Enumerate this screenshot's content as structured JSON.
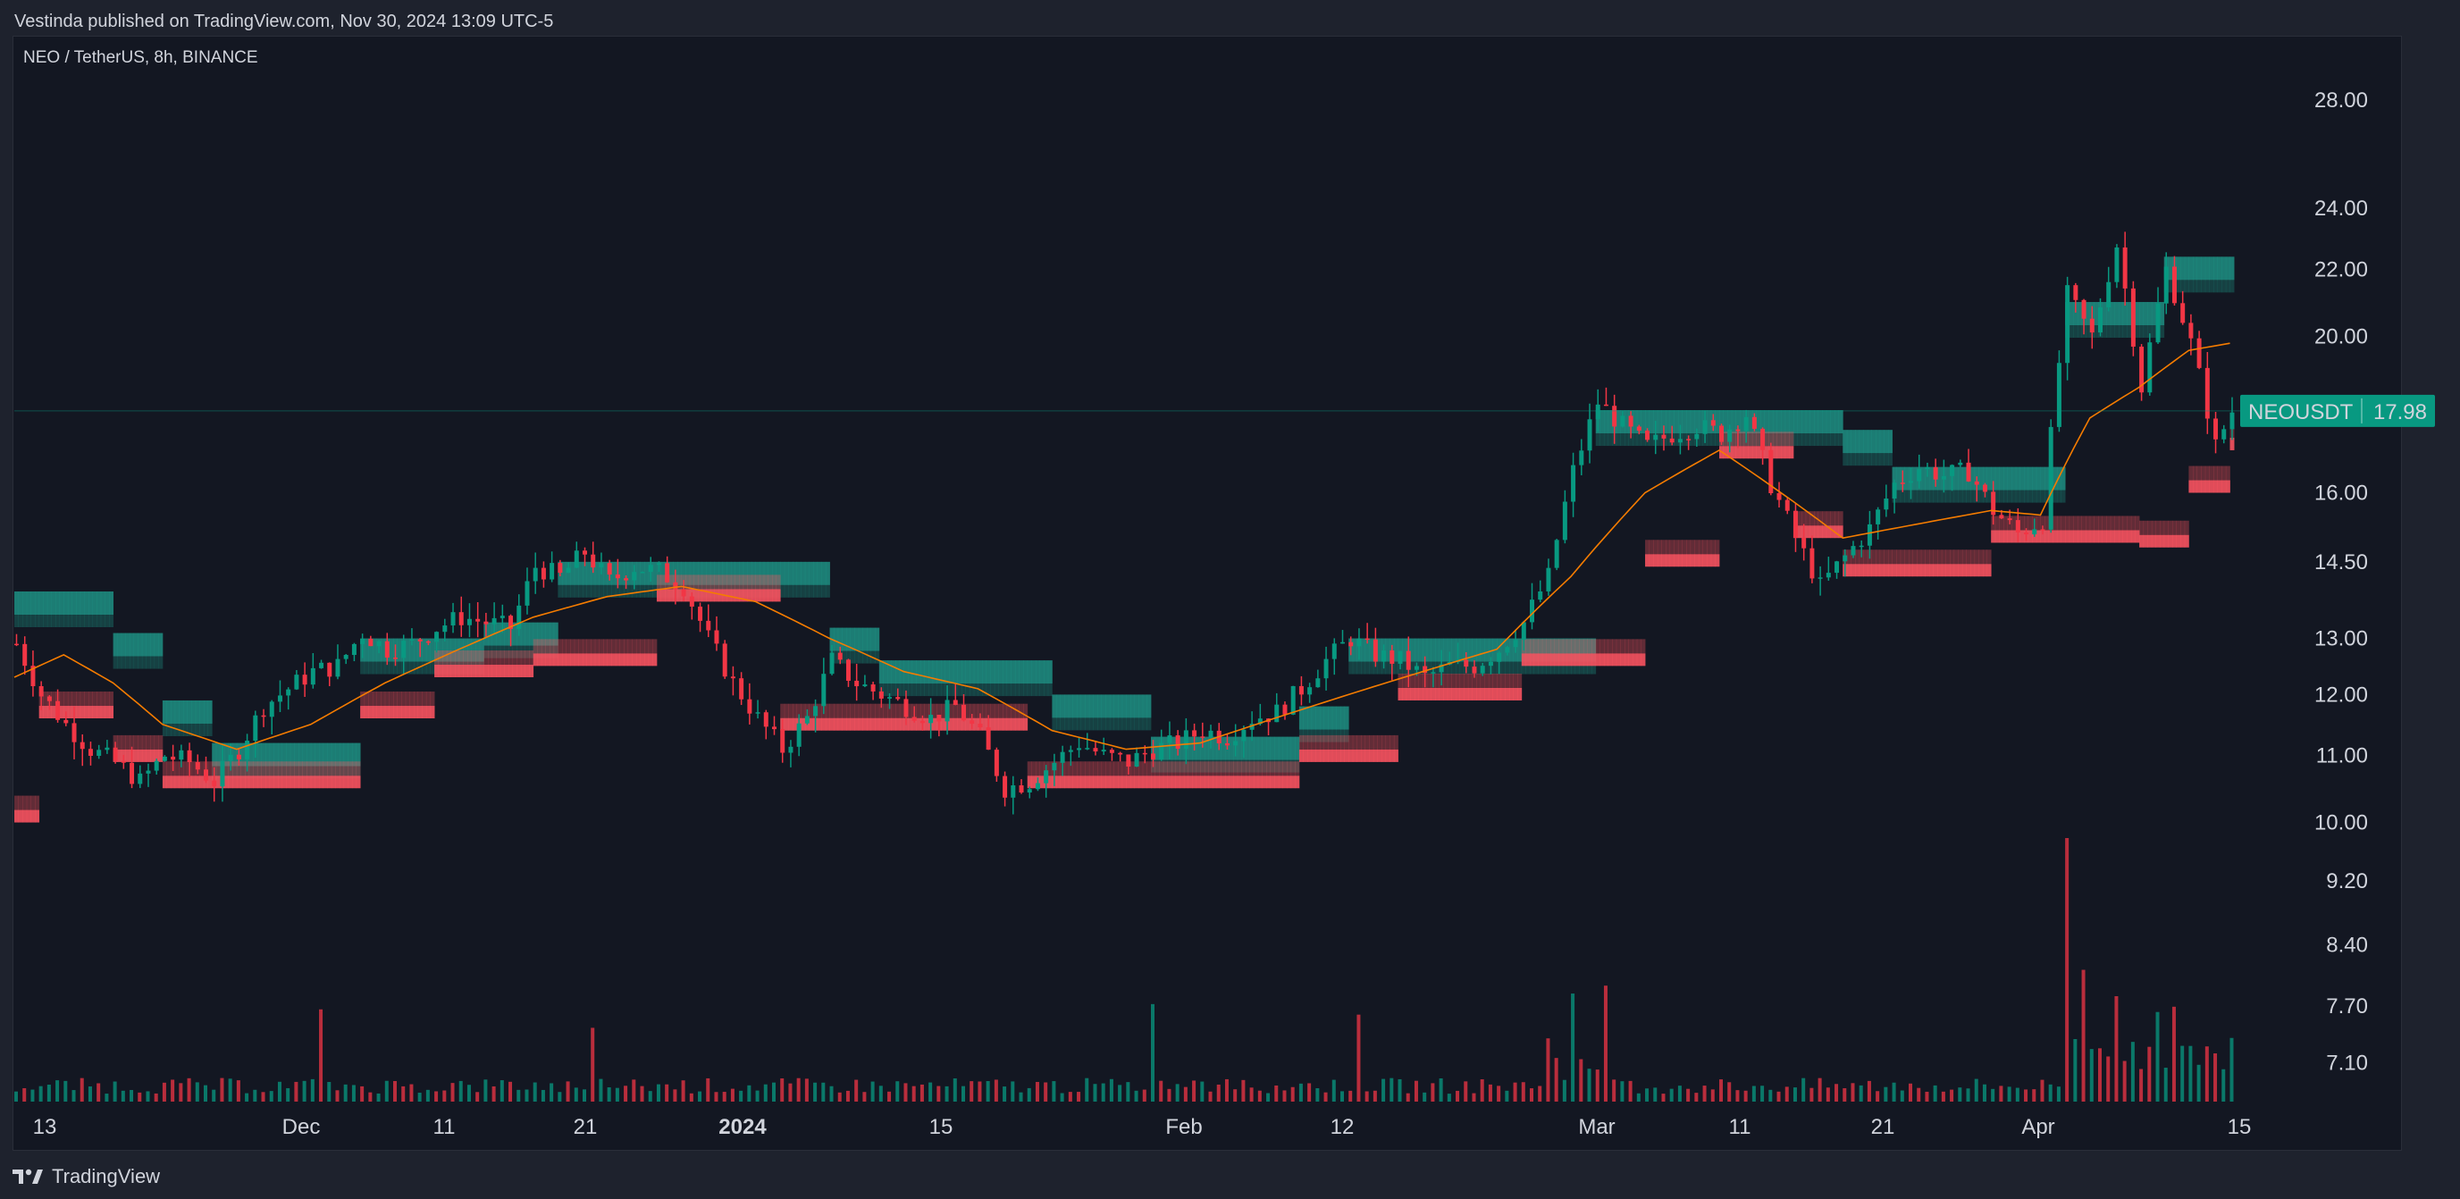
{
  "header": {
    "published_by": "Vestinda published on TradingView.com, Nov 30, 2024 13:09 UTC-5"
  },
  "symbol": {
    "title": "NEO / TetherUS, 8h, BINANCE",
    "ticker": "NEOUSDT",
    "last_price": "17.98",
    "badge_color": "#089981"
  },
  "footer": {
    "brand": "TradingView"
  },
  "colors": {
    "background": "#131722",
    "up": "#089981",
    "down": "#f23645",
    "band_upper": "#1e8f82",
    "band_lower": "#f7525f",
    "ma": "#f57c00"
  },
  "chart_data": {
    "type": "candlestick",
    "title": "NEO / TetherUS, 8h, BINANCE",
    "y_scale": "log",
    "ylim": [
      6.7,
      30.5
    ],
    "y_ticks": [
      "28.00",
      "24.00",
      "22.00",
      "20.00",
      "16.00",
      "14.50",
      "13.00",
      "12.00",
      "11.00",
      "10.00",
      "9.20",
      "8.40",
      "7.70",
      "7.10"
    ],
    "x_ticks": [
      "13",
      "Dec",
      "11",
      "21",
      "2024",
      "15",
      "Feb",
      "12",
      "Mar",
      "11",
      "21",
      "Apr",
      "15"
    ],
    "x_tick_bold": "2024",
    "last_price": 17.98,
    "price_series": [
      {
        "x": 0,
        "y": 12.9
      },
      {
        "x": 3,
        "y": 12.0
      },
      {
        "x": 6,
        "y": 11.5
      },
      {
        "x": 9,
        "y": 11.1
      },
      {
        "x": 12,
        "y": 10.9
      },
      {
        "x": 15,
        "y": 10.6
      },
      {
        "x": 18,
        "y": 11.0
      },
      {
        "x": 21,
        "y": 10.9
      },
      {
        "x": 24,
        "y": 10.6
      },
      {
        "x": 27,
        "y": 11.1
      },
      {
        "x": 30,
        "y": 11.8
      },
      {
        "x": 33,
        "y": 12.1
      },
      {
        "x": 36,
        "y": 12.4
      },
      {
        "x": 39,
        "y": 12.5
      },
      {
        "x": 42,
        "y": 13.1
      },
      {
        "x": 45,
        "y": 12.8
      },
      {
        "x": 48,
        "y": 12.9
      },
      {
        "x": 51,
        "y": 13.2
      },
      {
        "x": 54,
        "y": 13.4
      },
      {
        "x": 57,
        "y": 13.3
      },
      {
        "x": 60,
        "y": 13.2
      },
      {
        "x": 63,
        "y": 14.4
      },
      {
        "x": 66,
        "y": 14.2
      },
      {
        "x": 69,
        "y": 14.7
      },
      {
        "x": 72,
        "y": 14.1
      },
      {
        "x": 75,
        "y": 14.4
      },
      {
        "x": 78,
        "y": 14.3
      },
      {
        "x": 81,
        "y": 14.0
      },
      {
        "x": 84,
        "y": 13.0
      },
      {
        "x": 87,
        "y": 12.2
      },
      {
        "x": 90,
        "y": 11.6
      },
      {
        "x": 93,
        "y": 11.1
      },
      {
        "x": 96,
        "y": 11.6
      },
      {
        "x": 99,
        "y": 12.6
      },
      {
        "x": 102,
        "y": 12.2
      },
      {
        "x": 105,
        "y": 12.0
      },
      {
        "x": 108,
        "y": 11.8
      },
      {
        "x": 111,
        "y": 11.6
      },
      {
        "x": 114,
        "y": 11.8
      },
      {
        "x": 117,
        "y": 11.3
      },
      {
        "x": 120,
        "y": 10.5
      },
      {
        "x": 123,
        "y": 10.6
      },
      {
        "x": 126,
        "y": 10.9
      },
      {
        "x": 129,
        "y": 11.2
      },
      {
        "x": 132,
        "y": 11.0
      },
      {
        "x": 135,
        "y": 10.9
      },
      {
        "x": 138,
        "y": 11.1
      },
      {
        "x": 141,
        "y": 11.2
      },
      {
        "x": 144,
        "y": 11.4
      },
      {
        "x": 147,
        "y": 11.3
      },
      {
        "x": 150,
        "y": 11.6
      },
      {
        "x": 153,
        "y": 11.7
      },
      {
        "x": 156,
        "y": 12.1
      },
      {
        "x": 159,
        "y": 12.6
      },
      {
        "x": 162,
        "y": 13.0
      },
      {
        "x": 165,
        "y": 12.7
      },
      {
        "x": 168,
        "y": 12.6
      },
      {
        "x": 171,
        "y": 12.3
      },
      {
        "x": 174,
        "y": 12.5
      },
      {
        "x": 177,
        "y": 12.5
      },
      {
        "x": 180,
        "y": 12.8
      },
      {
        "x": 183,
        "y": 13.3
      },
      {
        "x": 186,
        "y": 14.2
      },
      {
        "x": 189,
        "y": 16.5
      },
      {
        "x": 192,
        "y": 18.2
      },
      {
        "x": 195,
        "y": 17.6
      },
      {
        "x": 198,
        "y": 17.1
      },
      {
        "x": 201,
        "y": 17.4
      },
      {
        "x": 204,
        "y": 17.6
      },
      {
        "x": 207,
        "y": 17.4
      },
      {
        "x": 210,
        "y": 17.9
      },
      {
        "x": 213,
        "y": 16.2
      },
      {
        "x": 216,
        "y": 15.0
      },
      {
        "x": 219,
        "y": 14.0
      },
      {
        "x": 222,
        "y": 14.6
      },
      {
        "x": 225,
        "y": 15.2
      },
      {
        "x": 228,
        "y": 16.2
      },
      {
        "x": 231,
        "y": 16.6
      },
      {
        "x": 234,
        "y": 16.4
      },
      {
        "x": 237,
        "y": 16.5
      },
      {
        "x": 240,
        "y": 15.6
      },
      {
        "x": 243,
        "y": 15.1
      },
      {
        "x": 246,
        "y": 15.4
      },
      {
        "x": 249,
        "y": 21.2
      },
      {
        "x": 252,
        "y": 20.0
      },
      {
        "x": 255,
        "y": 22.8
      },
      {
        "x": 258,
        "y": 18.6
      },
      {
        "x": 261,
        "y": 22.0
      },
      {
        "x": 264,
        "y": 19.8
      },
      {
        "x": 267,
        "y": 17.1
      },
      {
        "x": 269,
        "y": 17.98
      }
    ],
    "upper_band": [
      {
        "x": 0,
        "y": 13.9
      },
      {
        "x": 6,
        "y": 13.9
      },
      {
        "x": 12,
        "y": 13.1
      },
      {
        "x": 18,
        "y": 11.9
      },
      {
        "x": 24,
        "y": 11.2
      },
      {
        "x": 33,
        "y": 11.2
      },
      {
        "x": 42,
        "y": 13.0
      },
      {
        "x": 57,
        "y": 13.3
      },
      {
        "x": 66,
        "y": 14.5
      },
      {
        "x": 84,
        "y": 14.5
      },
      {
        "x": 99,
        "y": 13.2
      },
      {
        "x": 105,
        "y": 12.6
      },
      {
        "x": 117,
        "y": 12.6
      },
      {
        "x": 126,
        "y": 12.0
      },
      {
        "x": 138,
        "y": 11.3
      },
      {
        "x": 156,
        "y": 11.8
      },
      {
        "x": 162,
        "y": 13.0
      },
      {
        "x": 180,
        "y": 13.0
      },
      {
        "x": 192,
        "y": 18.0
      },
      {
        "x": 207,
        "y": 18.0
      },
      {
        "x": 219,
        "y": 18.0
      },
      {
        "x": 222,
        "y": 17.5
      },
      {
        "x": 228,
        "y": 16.6
      },
      {
        "x": 246,
        "y": 16.6
      },
      {
        "x": 249,
        "y": 21.0
      },
      {
        "x": 255,
        "y": 21.0
      },
      {
        "x": 261,
        "y": 22.4
      },
      {
        "x": 269,
        "y": 22.4
      }
    ],
    "lower_band": [
      {
        "x": 0,
        "y": 10.0
      },
      {
        "x": 3,
        "y": 11.6
      },
      {
        "x": 12,
        "y": 10.9
      },
      {
        "x": 18,
        "y": 10.5
      },
      {
        "x": 33,
        "y": 10.5
      },
      {
        "x": 42,
        "y": 11.6
      },
      {
        "x": 51,
        "y": 12.3
      },
      {
        "x": 63,
        "y": 12.5
      },
      {
        "x": 78,
        "y": 13.7
      },
      {
        "x": 87,
        "y": 13.7
      },
      {
        "x": 93,
        "y": 11.4
      },
      {
        "x": 117,
        "y": 11.4
      },
      {
        "x": 123,
        "y": 10.5
      },
      {
        "x": 141,
        "y": 10.5
      },
      {
        "x": 156,
        "y": 10.9
      },
      {
        "x": 168,
        "y": 11.9
      },
      {
        "x": 183,
        "y": 12.5
      },
      {
        "x": 198,
        "y": 14.4
      },
      {
        "x": 207,
        "y": 16.8
      },
      {
        "x": 216,
        "y": 15.0
      },
      {
        "x": 222,
        "y": 14.2
      },
      {
        "x": 234,
        "y": 14.2
      },
      {
        "x": 240,
        "y": 14.9
      },
      {
        "x": 258,
        "y": 14.8
      },
      {
        "x": 264,
        "y": 16.0
      },
      {
        "x": 269,
        "y": 17.0
      }
    ],
    "moving_average": [
      {
        "x": 0,
        "y": 12.3
      },
      {
        "x": 6,
        "y": 12.7
      },
      {
        "x": 12,
        "y": 12.2
      },
      {
        "x": 18,
        "y": 11.5
      },
      {
        "x": 27,
        "y": 11.1
      },
      {
        "x": 36,
        "y": 11.5
      },
      {
        "x": 45,
        "y": 12.2
      },
      {
        "x": 54,
        "y": 12.8
      },
      {
        "x": 63,
        "y": 13.4
      },
      {
        "x": 72,
        "y": 13.8
      },
      {
        "x": 81,
        "y": 14.0
      },
      {
        "x": 90,
        "y": 13.7
      },
      {
        "x": 99,
        "y": 13.0
      },
      {
        "x": 108,
        "y": 12.4
      },
      {
        "x": 117,
        "y": 12.1
      },
      {
        "x": 126,
        "y": 11.4
      },
      {
        "x": 135,
        "y": 11.1
      },
      {
        "x": 144,
        "y": 11.2
      },
      {
        "x": 153,
        "y": 11.6
      },
      {
        "x": 162,
        "y": 12.0
      },
      {
        "x": 171,
        "y": 12.4
      },
      {
        "x": 180,
        "y": 12.8
      },
      {
        "x": 189,
        "y": 14.2
      },
      {
        "x": 198,
        "y": 16.0
      },
      {
        "x": 207,
        "y": 17.0
      },
      {
        "x": 213,
        "y": 16.2
      },
      {
        "x": 222,
        "y": 15.0
      },
      {
        "x": 231,
        "y": 15.3
      },
      {
        "x": 240,
        "y": 15.6
      },
      {
        "x": 246,
        "y": 15.5
      },
      {
        "x": 252,
        "y": 17.8
      },
      {
        "x": 258,
        "y": 18.6
      },
      {
        "x": 264,
        "y": 19.6
      },
      {
        "x": 269,
        "y": 19.8
      }
    ],
    "volume_spikes": [
      {
        "x": 37,
        "v": 0.35
      },
      {
        "x": 70,
        "v": 0.28
      },
      {
        "x": 138,
        "v": 0.37
      },
      {
        "x": 163,
        "v": 0.33
      },
      {
        "x": 186,
        "v": 0.24
      },
      {
        "x": 189,
        "v": 0.41
      },
      {
        "x": 193,
        "v": 0.44
      },
      {
        "x": 249,
        "v": 1.0
      },
      {
        "x": 251,
        "v": 0.5
      },
      {
        "x": 255,
        "v": 0.4
      },
      {
        "x": 260,
        "v": 0.34
      },
      {
        "x": 262,
        "v": 0.36
      }
    ]
  }
}
